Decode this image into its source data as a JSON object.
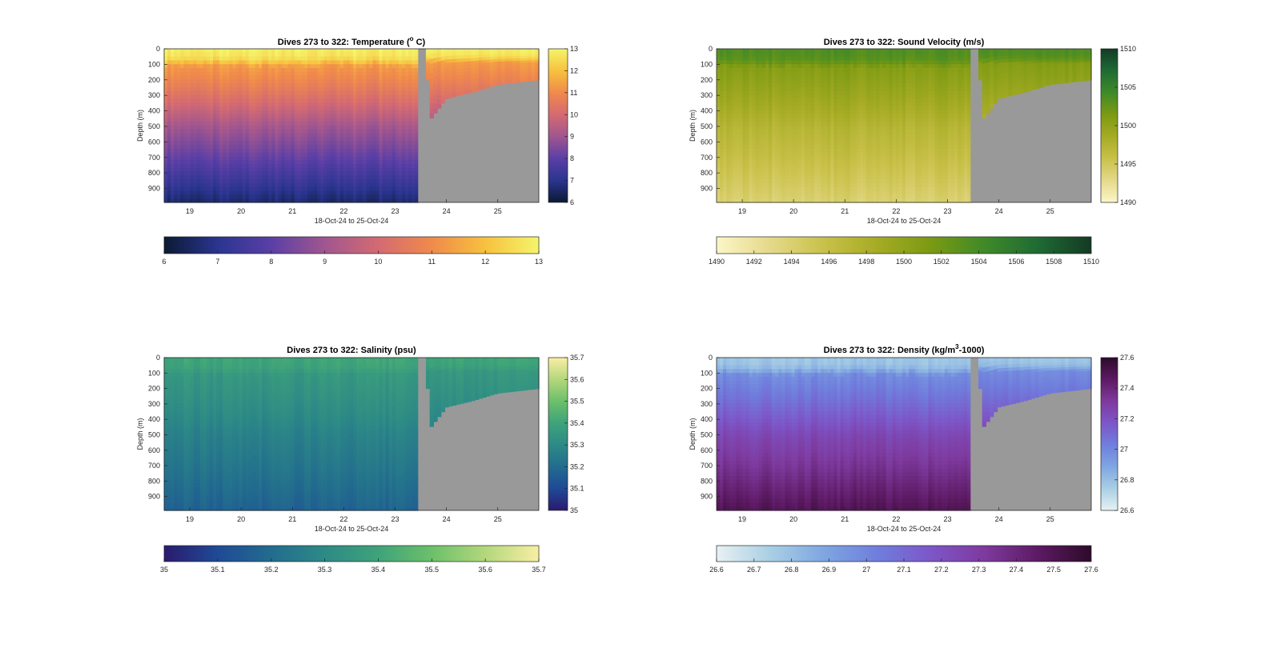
{
  "chart_data": [
    {
      "type": "heatmap",
      "title_main": "Dives 273 to 322: Temperature (",
      "title_sup": "o",
      "title_tail": " C)",
      "xlabel": "18-Oct-24 to 25-Oct-24",
      "ylabel": "Depth (m)",
      "xlim": [
        18.5,
        25.8
      ],
      "ylim": [
        0,
        990
      ],
      "x_ticks": [
        "19",
        "20",
        "21",
        "22",
        "23",
        "24",
        "25"
      ],
      "y_ticks": [
        "0",
        "100",
        "200",
        "300",
        "400",
        "500",
        "600",
        "700",
        "800",
        "900"
      ],
      "colorbar_ticks": [
        "6",
        "7",
        "8",
        "9",
        "10",
        "11",
        "12",
        "13"
      ],
      "hcolorbar_ticks": [
        "6",
        "7",
        "8",
        "9",
        "10",
        "11",
        "12",
        "13"
      ],
      "clim": [
        6,
        13
      ],
      "colormap": [
        "#0b1a33",
        "#2a3590",
        "#5a3fa6",
        "#a0568f",
        "#d46a72",
        "#f08a4b",
        "#f7c13e",
        "#f4f56b"
      ],
      "profile": {
        "surface": 12.8,
        "thermocline_depth": 110,
        "mid": 10.3,
        "bottom": 6.6
      },
      "data_end_x": 23.45,
      "gap_x": [
        23.45,
        23.6
      ],
      "nodata_color": "#999999",
      "shallow_dive_max_depth": {
        "23.7": 450,
        "24.0": 320,
        "24.5": 280,
        "25.0": 230,
        "25.8": 200
      }
    },
    {
      "type": "heatmap",
      "title_main": "Dives 273 to 322: Sound Velocity (m/s)",
      "title_sup": "",
      "title_tail": "",
      "xlabel": "18-Oct-24 to 25-Oct-24",
      "ylabel": "Depth (m)",
      "xlim": [
        18.5,
        25.8
      ],
      "ylim": [
        0,
        990
      ],
      "x_ticks": [
        "19",
        "20",
        "21",
        "22",
        "23",
        "24",
        "25"
      ],
      "y_ticks": [
        "0",
        "100",
        "200",
        "300",
        "400",
        "500",
        "600",
        "700",
        "800",
        "900"
      ],
      "colorbar_ticks": [
        "1490",
        "1495",
        "1500",
        "1505",
        "1510"
      ],
      "hcolorbar_ticks": [
        "1490",
        "1492",
        "1494",
        "1496",
        "1498",
        "1500",
        "1502",
        "1504",
        "1506",
        "1508",
        "1510"
      ],
      "clim": [
        1490,
        1510
      ],
      "colormap": [
        "#fbf6c8",
        "#e4d98a",
        "#c9c14a",
        "#a6ab24",
        "#7b9a12",
        "#3f8a28",
        "#1f6b33",
        "#143a24"
      ],
      "profile": {
        "surface": 1503.5,
        "thermocline_depth": 120,
        "mid": 1499.0,
        "bottom": 1494.0
      },
      "data_end_x": 23.45,
      "gap_x": [
        23.45,
        23.6
      ],
      "nodata_color": "#999999",
      "shallow_dive_max_depth": {
        "23.7": 450,
        "24.0": 320,
        "24.5": 280,
        "25.0": 230,
        "25.8": 200
      }
    },
    {
      "type": "heatmap",
      "title_main": "Dives 273 to 322: Salinity (psu)",
      "title_sup": "",
      "title_tail": "",
      "xlabel": "18-Oct-24 to 25-Oct-24",
      "ylabel": "Depth (m)",
      "xlim": [
        18.5,
        25.8
      ],
      "ylim": [
        0,
        990
      ],
      "x_ticks": [
        "19",
        "20",
        "21",
        "22",
        "23",
        "24",
        "25"
      ],
      "y_ticks": [
        "0",
        "100",
        "200",
        "300",
        "400",
        "500",
        "600",
        "700",
        "800",
        "900"
      ],
      "colorbar_ticks": [
        "35",
        "35.1",
        "35.2",
        "35.3",
        "35.4",
        "35.5",
        "35.6",
        "35.7"
      ],
      "hcolorbar_ticks": [
        "35",
        "35.1",
        "35.2",
        "35.3",
        "35.4",
        "35.5",
        "35.6",
        "35.7"
      ],
      "clim": [
        35,
        35.7
      ],
      "colormap": [
        "#2a1a6e",
        "#1f4a96",
        "#226c8e",
        "#2d8a86",
        "#3ea37a",
        "#6cc06a",
        "#b3d77c",
        "#f9eea3"
      ],
      "profile": {
        "surface": 35.4,
        "thermocline_depth": 110,
        "mid": 35.32,
        "bottom": 35.17
      },
      "data_end_x": 23.45,
      "gap_x": [
        23.45,
        23.6
      ],
      "nodata_color": "#999999",
      "shallow_dive_max_depth": {
        "23.7": 450,
        "24.0": 320,
        "24.5": 280,
        "25.0": 230,
        "25.8": 200
      }
    },
    {
      "type": "heatmap",
      "title_main": "Dives 273 to 322: Density (kg/m",
      "title_sup": "3",
      "title_tail": "-1000)",
      "xlabel": "18-Oct-24 to 25-Oct-24",
      "ylabel": "Depth (m)",
      "xlim": [
        18.5,
        25.8
      ],
      "ylim": [
        0,
        990
      ],
      "x_ticks": [
        "19",
        "20",
        "21",
        "22",
        "23",
        "24",
        "25"
      ],
      "y_ticks": [
        "0",
        "100",
        "200",
        "300",
        "400",
        "500",
        "600",
        "700",
        "800",
        "900"
      ],
      "colorbar_ticks": [
        "26.6",
        "26.8",
        "27",
        "27.2",
        "27.4",
        "27.6"
      ],
      "hcolorbar_ticks": [
        "26.6",
        "26.7",
        "26.8",
        "26.9",
        "27",
        "27.1",
        "27.2",
        "27.3",
        "27.4",
        "27.5",
        "27.6"
      ],
      "clim": [
        26.6,
        27.6
      ],
      "colormap": [
        "#e7f1f3",
        "#a9cfe4",
        "#7fa6e2",
        "#6f7edc",
        "#7d56c8",
        "#7e3a9e",
        "#5d1a63",
        "#2c0b2a"
      ],
      "profile": {
        "surface": 26.78,
        "thermocline_depth": 110,
        "mid": 27.12,
        "bottom": 27.5
      },
      "data_end_x": 23.45,
      "gap_x": [
        23.45,
        23.6
      ],
      "nodata_color": "#999999",
      "shallow_dive_max_depth": {
        "23.7": 450,
        "24.0": 320,
        "24.5": 280,
        "25.0": 230,
        "25.8": 200
      }
    }
  ]
}
